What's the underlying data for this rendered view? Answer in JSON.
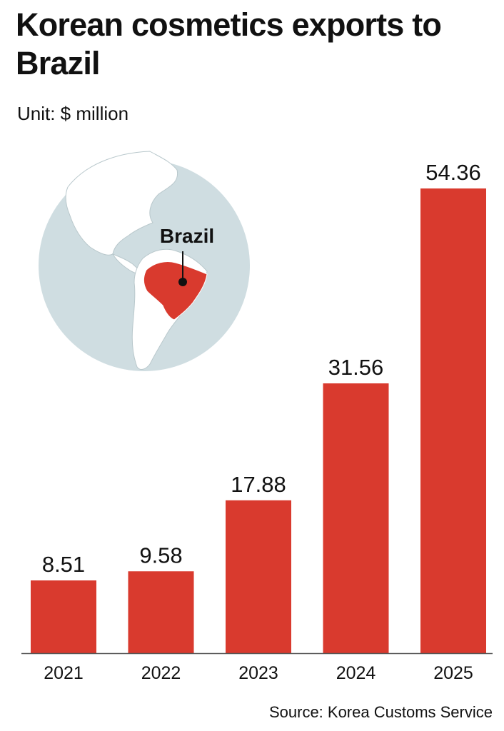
{
  "title": "Korean cosmetics exports to Brazil",
  "unit": "Unit: $ million",
  "source": "Source: Korea Customs Service",
  "map": {
    "label": "Brazil",
    "ocean_color": "#cfdde1",
    "land_color": "#ffffff",
    "highlight_color": "#d93a2e"
  },
  "colors": {
    "bar": "#d93a2e"
  },
  "chart_data": {
    "type": "bar",
    "title": "Korean cosmetics exports to Brazil",
    "ylabel": "Unit: $ million",
    "xlabel": "",
    "categories": [
      "2021",
      "2022",
      "2023",
      "2024",
      "2025"
    ],
    "values": [
      8.51,
      9.58,
      17.88,
      31.56,
      54.36
    ],
    "value_labels": [
      "8.51",
      "9.58",
      "17.88",
      "31.56",
      "54.36"
    ],
    "ylim": [
      0,
      54.36
    ],
    "grid": false,
    "legend": "none"
  }
}
